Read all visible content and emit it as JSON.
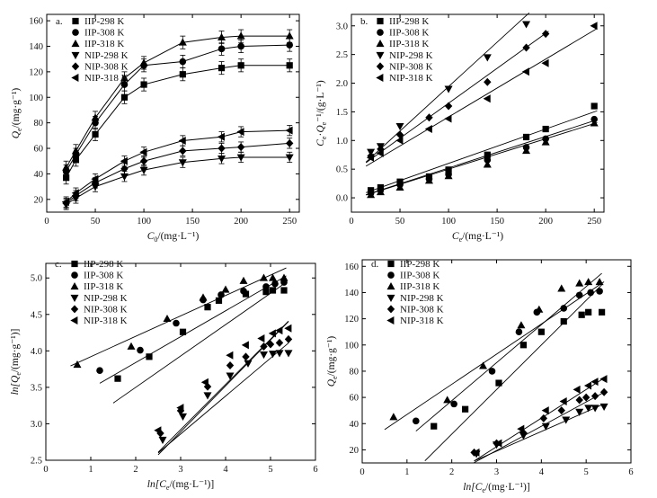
{
  "chart_data": [
    {
      "id": "a",
      "type": "line",
      "panel_label": "a.",
      "xlabel_main": "C",
      "xlabel_sub": "0",
      "xlabel_unit": "/(mg·L⁻¹)",
      "ylabel_main": "Q",
      "ylabel_sub": "e",
      "ylabel_unit": "/(mg·g⁻¹)",
      "xlim": [
        0,
        260
      ],
      "ylim": [
        10,
        165
      ],
      "xticks": [
        0,
        50,
        100,
        150,
        200,
        250
      ],
      "yticks": [
        20,
        40,
        60,
        80,
        100,
        120,
        140,
        160
      ],
      "legend_position": "top-left",
      "error_bars": true,
      "x": [
        20,
        30,
        50,
        80,
        100,
        140,
        180,
        200,
        250
      ],
      "series": [
        {
          "name": "IIP-298 K",
          "marker": "square",
          "values": [
            37,
            51,
            71,
            100,
            110,
            118,
            123,
            125,
            125
          ],
          "errors": [
            5,
            5,
            5,
            5,
            5,
            5,
            5,
            5,
            5
          ]
        },
        {
          "name": "IIP-308 K",
          "marker": "circle",
          "values": [
            42,
            55,
            80,
            110,
            125,
            128,
            138,
            140,
            141
          ],
          "errors": [
            5,
            5,
            5,
            5,
            5,
            5,
            5,
            5,
            5
          ]
        },
        {
          "name": "IIP-318 K",
          "marker": "triangle",
          "values": [
            45,
            58,
            84,
            115,
            127,
            143,
            147,
            148,
            148
          ],
          "errors": [
            5,
            5,
            5,
            5,
            5,
            5,
            5,
            5,
            5
          ]
        },
        {
          "name": "NIP-298 K",
          "marker": "tri-down",
          "values": [
            16,
            21,
            30,
            38,
            43,
            49,
            52,
            53,
            53
          ],
          "errors": [
            4,
            4,
            4,
            4,
            4,
            4,
            4,
            4,
            4
          ]
        },
        {
          "name": "NIP-308 K",
          "marker": "diamond",
          "values": [
            17,
            23,
            33,
            44,
            50,
            58,
            60,
            61,
            64
          ],
          "errors": [
            4,
            4,
            4,
            4,
            4,
            4,
            4,
            4,
            4
          ]
        },
        {
          "name": "NIP-318 K",
          "marker": "tri-left",
          "values": [
            18,
            25,
            36,
            50,
            57,
            66,
            69,
            73,
            74
          ],
          "errors": [
            4,
            4,
            4,
            4,
            4,
            4,
            4,
            4,
            4
          ]
        }
      ]
    },
    {
      "id": "b",
      "type": "scatter",
      "panel_label": "b.",
      "xlabel_main": "C",
      "xlabel_sub": "e",
      "xlabel_unit": "/(mg·L⁻¹)",
      "ylabel_main": "C",
      "ylabel_sub": "e",
      "ylabel_unit": "Q",
      "ylabel_sub2": "e",
      "ylabel_tail": "⁻¹/(g·L⁻¹)",
      "xlim": [
        0,
        260
      ],
      "ylim": [
        -0.25,
        3.2
      ],
      "xticks": [
        0,
        50,
        100,
        150,
        200,
        250
      ],
      "yticks": [
        0.0,
        0.5,
        1.0,
        1.5,
        2.0,
        2.5,
        3.0
      ],
      "legend_position": "top-left",
      "fit_lines": true,
      "series": [
        {
          "name": "IIP-298 K",
          "marker": "square",
          "x": [
            20,
            30,
            50,
            80,
            100,
            140,
            180,
            200,
            250
          ],
          "values": [
            0.13,
            0.18,
            0.28,
            0.37,
            0.49,
            0.75,
            1.06,
            1.2,
            1.6
          ],
          "fit": [
            0.0,
            0.006
          ]
        },
        {
          "name": "IIP-308 K",
          "marker": "circle",
          "x": [
            20,
            30,
            50,
            80,
            100,
            140,
            180,
            200,
            250
          ],
          "values": [
            0.08,
            0.13,
            0.23,
            0.33,
            0.41,
            0.66,
            0.88,
            1.03,
            1.37
          ],
          "fit": [
            -0.03,
            0.0055
          ]
        },
        {
          "name": "IIP-318 K",
          "marker": "triangle",
          "x": [
            20,
            30,
            50,
            80,
            100,
            140,
            180,
            200,
            250
          ],
          "values": [
            0.05,
            0.1,
            0.18,
            0.3,
            0.38,
            0.58,
            0.82,
            0.97,
            1.3
          ],
          "fit": [
            -0.03,
            0.0053
          ]
        },
        {
          "name": "NIP-298 K",
          "marker": "tri-down",
          "x": [
            20,
            30,
            50,
            100,
            140,
            180
          ],
          "values": [
            0.8,
            0.9,
            1.25,
            1.9,
            2.45,
            3.03
          ],
          "fit": [
            0.39,
            0.0155
          ]
        },
        {
          "name": "NIP-308 K",
          "marker": "diamond",
          "x": [
            20,
            30,
            50,
            80,
            100,
            140,
            180,
            200
          ],
          "values": [
            0.73,
            0.85,
            1.1,
            1.4,
            1.6,
            2.02,
            2.62,
            2.86
          ],
          "fit": [
            0.43,
            0.0122
          ]
        },
        {
          "name": "NIP-318 K",
          "marker": "tri-left",
          "x": [
            20,
            30,
            50,
            80,
            100,
            140,
            180,
            200,
            250
          ],
          "values": [
            0.7,
            0.78,
            1.0,
            1.2,
            1.38,
            1.73,
            2.2,
            2.35,
            3.0
          ],
          "fit": [
            0.4,
            0.0101
          ]
        }
      ]
    },
    {
      "id": "c",
      "type": "scatter",
      "panel_label": "c.",
      "xlabel_main": "ln[C",
      "xlabel_sub": "e",
      "xlabel_unit": "/(mg·L⁻¹)]",
      "ylabel_main": "ln[Q",
      "ylabel_sub": "e",
      "ylabel_unit": "/(mg·g⁻¹)]",
      "xlim": [
        0,
        6
      ],
      "ylim": [
        2.5,
        5.2
      ],
      "xticks": [
        0,
        1,
        2,
        3,
        4,
        5,
        6
      ],
      "yticks": [
        2.5,
        3.0,
        3.5,
        4.0,
        4.5,
        5.0
      ],
      "legend_position": "top-left",
      "fit_lines": true,
      "series": [
        {
          "name": "IIP-298 K",
          "marker": "square",
          "x": [
            1.6,
            2.3,
            3.05,
            3.6,
            3.85,
            4.45,
            4.9,
            5.05,
            5.3
          ],
          "values": [
            3.62,
            3.92,
            4.26,
            4.6,
            4.69,
            4.78,
            4.81,
            4.83,
            4.83
          ],
          "fit": [
            2.64,
            0.43
          ],
          "fit_x": [
            1.5,
            5.35
          ]
        },
        {
          "name": "IIP-308 K",
          "marker": "circle",
          "x": [
            1.2,
            2.1,
            2.9,
            3.5,
            3.9,
            4.4,
            4.9,
            5.1,
            5.3
          ],
          "values": [
            3.73,
            4.01,
            4.38,
            4.7,
            4.77,
            4.82,
            4.88,
            4.92,
            4.94
          ],
          "fit": [
            3.13,
            0.355
          ],
          "fit_x": [
            1.2,
            5.35
          ]
        },
        {
          "name": "IIP-318 K",
          "marker": "triangle",
          "x": [
            0.7,
            1.9,
            2.7,
            3.5,
            4.0,
            4.4,
            4.85,
            5.05,
            5.3
          ],
          "values": [
            3.81,
            4.06,
            4.44,
            4.73,
            4.84,
            4.96,
            5.0,
            5.0,
            5.0
          ],
          "fit": [
            3.64,
            0.28
          ],
          "fit_x": [
            0.55,
            5.35
          ]
        },
        {
          "name": "NIP-298 K",
          "marker": "tri-down",
          "x": [
            2.6,
            3.05,
            3.6,
            4.1,
            4.5,
            4.85,
            5.05,
            5.2,
            5.4
          ],
          "values": [
            2.78,
            3.1,
            3.39,
            3.66,
            3.83,
            3.95,
            3.96,
            3.97,
            3.97
          ],
          "fit": [
            1.3,
            0.52
          ],
          "fit_x": [
            2.5,
            5.4
          ]
        },
        {
          "name": "NIP-308 K",
          "marker": "diamond",
          "x": [
            2.55,
            3.0,
            3.6,
            4.1,
            4.45,
            4.85,
            5.0,
            5.2,
            5.4
          ],
          "values": [
            2.87,
            3.18,
            3.51,
            3.8,
            3.92,
            4.06,
            4.09,
            4.11,
            4.16
          ],
          "fit": [
            1.06,
            0.62
          ],
          "fit_x": [
            2.5,
            5.4
          ]
        },
        {
          "name": "NIP-318 K",
          "marker": "tri-left",
          "x": [
            2.5,
            3.0,
            3.55,
            4.1,
            4.45,
            4.8,
            5.05,
            5.2,
            5.4
          ],
          "values": [
            2.91,
            3.22,
            3.57,
            3.94,
            4.08,
            4.17,
            4.24,
            4.28,
            4.31
          ],
          "fit": [
            1.0,
            0.63
          ],
          "fit_x": [
            2.5,
            5.4
          ]
        }
      ]
    },
    {
      "id": "d",
      "type": "scatter",
      "panel_label": "d.",
      "xlabel_main": "ln[C",
      "xlabel_sub": "e",
      "xlabel_unit": "/(mg·L⁻¹)]",
      "ylabel_main": "Q",
      "ylabel_sub": "e",
      "ylabel_unit": "/(mg·g⁻¹)",
      "xlim": [
        0,
        6
      ],
      "ylim": [
        10,
        165
      ],
      "xticks": [
        0,
        1,
        2,
        3,
        4,
        5,
        6
      ],
      "yticks": [
        20,
        40,
        60,
        80,
        100,
        120,
        140,
        160
      ],
      "legend_position": "top-left",
      "fit_lines": true,
      "series": [
        {
          "name": "IIP-298 K",
          "marker": "square",
          "x": [
            1.6,
            2.3,
            3.05,
            3.6,
            4.0,
            4.5,
            4.9,
            5.05,
            5.35
          ],
          "values": [
            38,
            51,
            71,
            100,
            110,
            118,
            123,
            125,
            125
          ],
          "fit": [
            -36,
            34
          ],
          "fit_x": [
            1.4,
            5.35
          ]
        },
        {
          "name": "IIP-308 K",
          "marker": "circle",
          "x": [
            1.2,
            2.05,
            2.9,
            3.5,
            3.9,
            4.5,
            4.85,
            5.1,
            5.3
          ],
          "values": [
            42,
            55,
            80,
            110,
            125,
            128,
            138,
            140,
            141
          ],
          "fit": [
            -0.5,
            29
          ],
          "fit_x": [
            1.2,
            5.35
          ]
        },
        {
          "name": "IIP-318 K",
          "marker": "triangle",
          "x": [
            0.7,
            1.9,
            2.7,
            3.55,
            3.95,
            4.45,
            4.85,
            5.05,
            5.3
          ],
          "values": [
            45,
            58,
            84,
            115,
            127,
            143,
            147,
            148,
            148
          ],
          "fit": [
            24,
            23
          ],
          "fit_x": [
            0.5,
            5.4
          ]
        },
        {
          "name": "NIP-298 K",
          "marker": "tri-down",
          "x": [
            2.55,
            3.0,
            3.6,
            4.1,
            4.55,
            4.85,
            5.05,
            5.2,
            5.4
          ],
          "values": [
            17,
            24,
            31,
            38,
            43,
            49,
            52,
            52,
            53
          ],
          "fit": [
            -26,
            15
          ],
          "fit_x": [
            2.5,
            5.4
          ]
        },
        {
          "name": "NIP-308 K",
          "marker": "diamond",
          "x": [
            2.5,
            3.0,
            3.6,
            4.05,
            4.45,
            4.85,
            5.0,
            5.2,
            5.4
          ],
          "values": [
            18,
            25,
            33,
            44,
            50,
            58,
            60,
            61,
            64
          ],
          "fit": [
            -36,
            18.5
          ],
          "fit_x": [
            2.5,
            5.4
          ]
        },
        {
          "name": "NIP-318 K",
          "marker": "tri-left",
          "x": [
            2.55,
            3.05,
            3.55,
            4.1,
            4.5,
            4.8,
            5.05,
            5.2,
            5.4
          ],
          "values": [
            18,
            25,
            36,
            50,
            57,
            66,
            69,
            72,
            74
          ],
          "fit": [
            -43,
            21.8
          ],
          "fit_x": [
            2.5,
            5.4
          ]
        }
      ]
    }
  ]
}
